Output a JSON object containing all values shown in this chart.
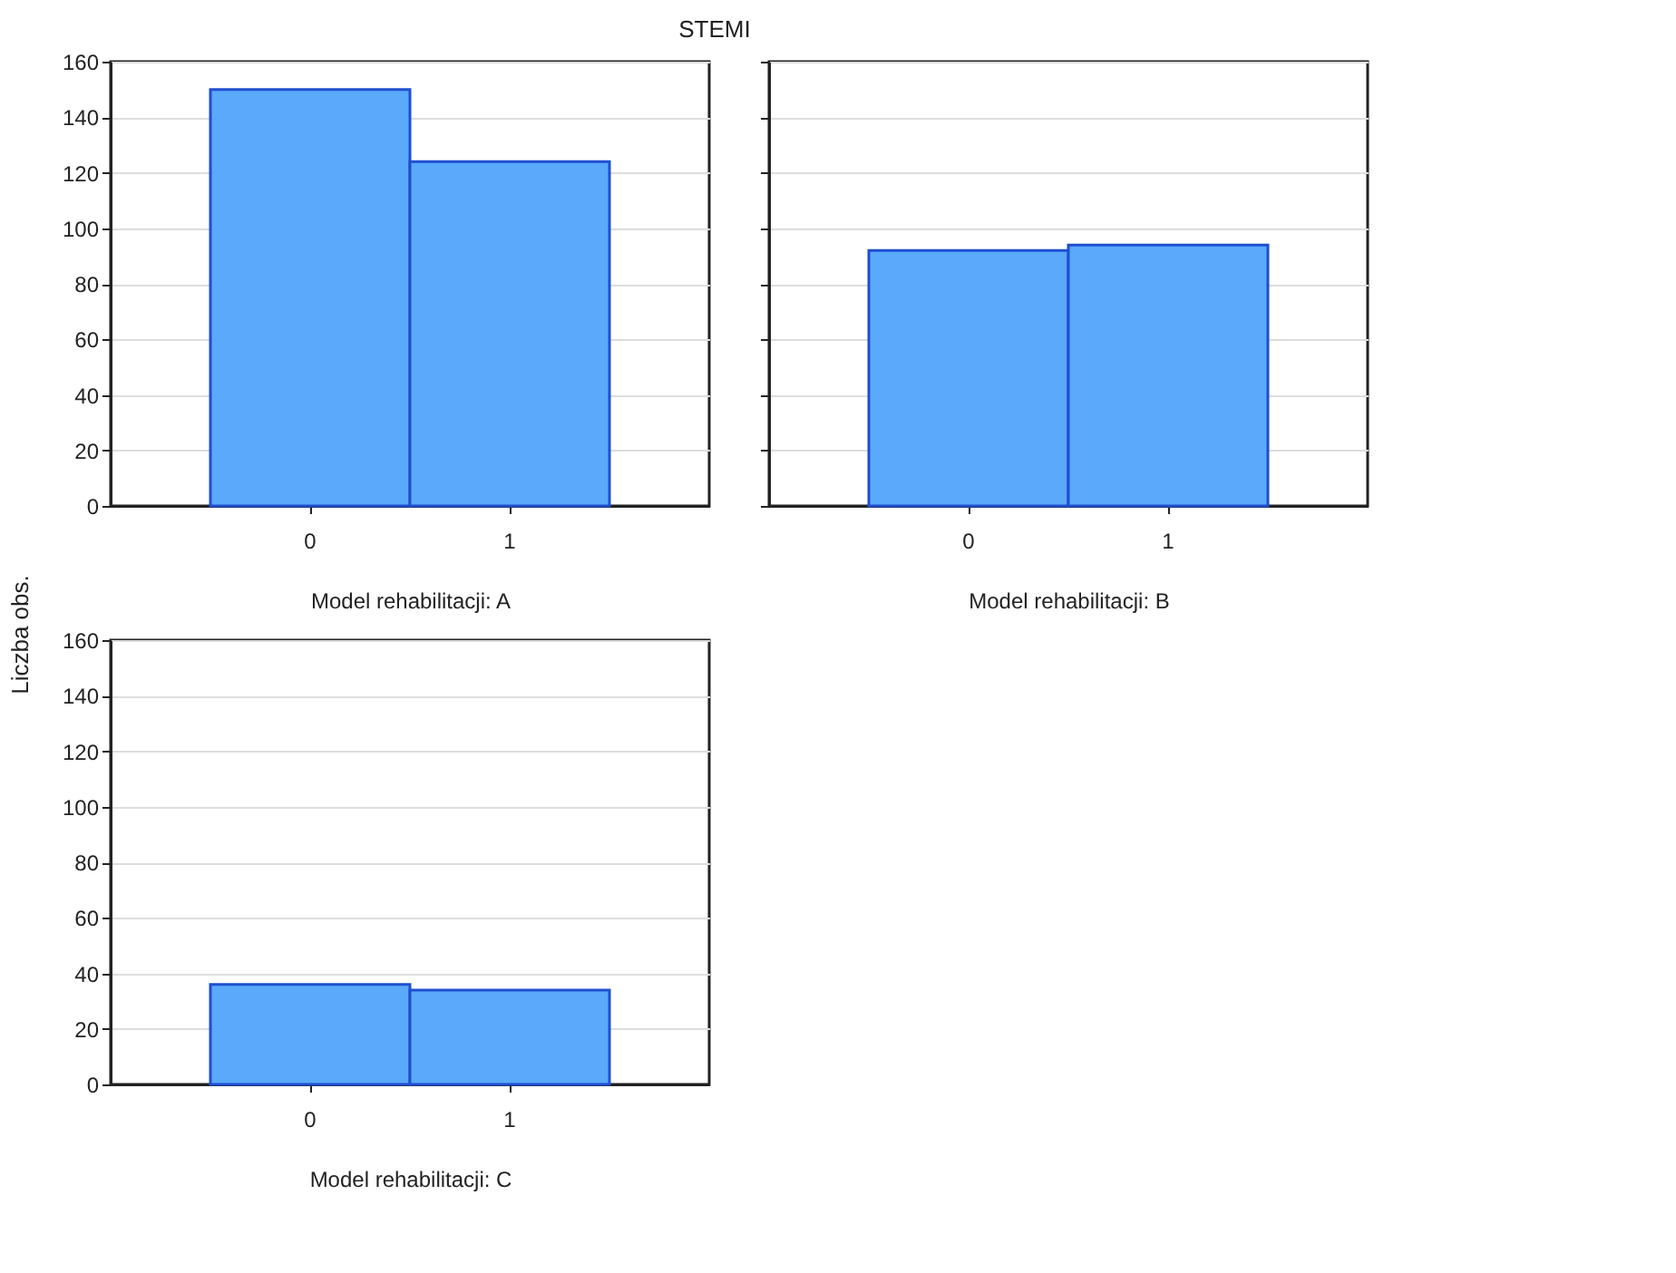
{
  "chart_data": [
    {
      "type": "bar",
      "title": "STEMI",
      "ylabel": "Liczba obs.",
      "xlabel": "Model rehabilitacji: A",
      "categories": [
        "0",
        "1"
      ],
      "values": [
        150,
        124
      ],
      "color": "#5aa9fb",
      "ylim": [
        0,
        160
      ],
      "yticks": [
        0,
        20,
        40,
        60,
        80,
        100,
        120,
        140,
        160
      ],
      "grid": "y"
    },
    {
      "type": "bar",
      "xlabel": "Model rehabilitacji: B",
      "categories": [
        "0",
        "1"
      ],
      "values": [
        92,
        94
      ],
      "color": "#5aa9fb",
      "ylim": [
        0,
        160
      ],
      "yticks": [
        0,
        20,
        40,
        60,
        80,
        100,
        120,
        140,
        160
      ],
      "grid": "y",
      "tick_labels": "x"
    },
    {
      "type": "bar",
      "xlabel": "Model rehabilitacji: C",
      "categories": [
        "0",
        "1"
      ],
      "values": [
        36,
        34
      ],
      "color": "#5aa9fb",
      "ylim": [
        0,
        160
      ],
      "yticks": [
        0,
        20,
        40,
        60,
        80,
        100,
        120,
        140,
        160
      ],
      "grid": "y"
    }
  ]
}
